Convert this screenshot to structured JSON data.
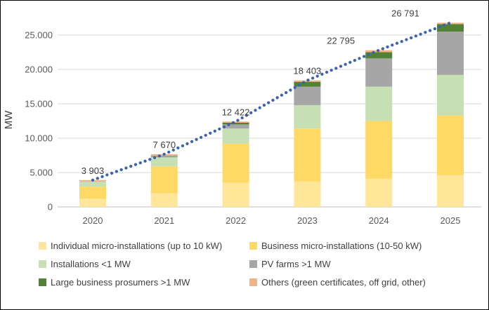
{
  "chart_data": {
    "type": "bar",
    "subtype": "stacked-bars-with-dotted-trend-line",
    "title": "",
    "ylabel": "MW",
    "categories": [
      "2020",
      "2021",
      "2022",
      "2023",
      "2024",
      "2025"
    ],
    "series": [
      {
        "name": "Individual micro-installations (up to 10 kW)",
        "color": "#FFE699",
        "values": [
          1200,
          2000,
          3500,
          3700,
          4100,
          4600
        ]
      },
      {
        "name": "Business micro-installations (10-50 kW)",
        "color": "#FFD966",
        "values": [
          1750,
          3900,
          5700,
          7700,
          8400,
          8700
        ]
      },
      {
        "name": "Installations <1 MW",
        "color": "#C6E0B4",
        "values": [
          700,
          1300,
          2200,
          3400,
          5000,
          5900
        ]
      },
      {
        "name": "PV farms >1 MW",
        "color": "#A6A6A6",
        "values": [
          50,
          220,
          600,
          2700,
          4100,
          6300
        ]
      },
      {
        "name": "Large business prosumers >1 MW",
        "color": "#548235",
        "values": [
          3,
          50,
          250,
          700,
          900,
          1100
        ]
      },
      {
        "name": "Others (green certificates, off grid, other)",
        "color": "#F4B183",
        "values": [
          200,
          200,
          172,
          203,
          295,
          191
        ]
      }
    ],
    "totals": [
      3903,
      7670,
      12422,
      18403,
      22795,
      26791
    ],
    "total_labels": [
      "3 903",
      "7 670",
      "12 422",
      "18 403",
      "22 795",
      "26 791"
    ],
    "trend_line": {
      "name": "total installed capacity trend",
      "color": "#3A64AD",
      "style": "round-dotted",
      "values": [
        3903,
        7670,
        12422,
        18403,
        22795,
        26791
      ]
    },
    "yticks": {
      "values": [
        0,
        5000,
        10000,
        15000,
        20000,
        25000
      ],
      "labels": [
        "0",
        "5.000",
        "10.000",
        "15.000",
        "20.000",
        "25.000"
      ]
    },
    "ylim": [
      0,
      27500
    ],
    "grid": true,
    "legend_position": "bottom",
    "colors": {
      "background": "#FFFFFF",
      "frame_border": "#000000",
      "gridline": "#D9D9D9",
      "axis_line": "#BFBFBF",
      "tick_text": "#595959",
      "label_text": "#404040"
    }
  }
}
